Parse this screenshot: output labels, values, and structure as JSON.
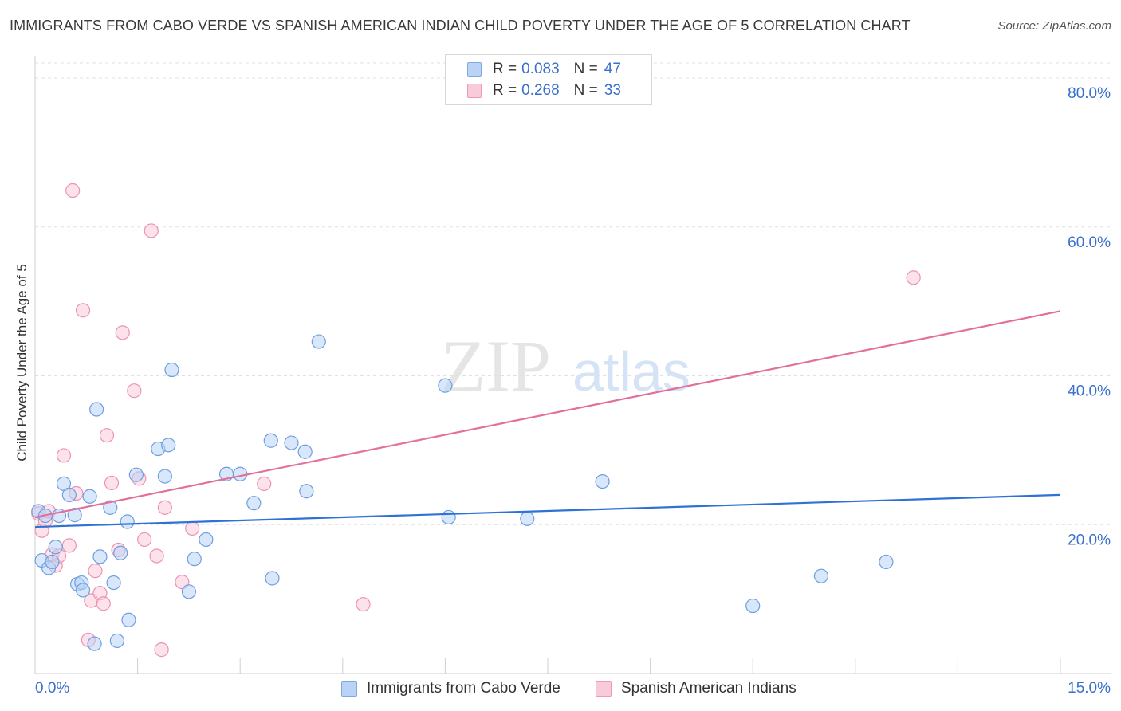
{
  "title": "IMMIGRANTS FROM CABO VERDE VS SPANISH AMERICAN INDIAN CHILD POVERTY UNDER THE AGE OF 5 CORRELATION CHART",
  "source": "Source: ZipAtlas.com",
  "watermark": {
    "zip": "ZIP",
    "atlas": "atlas"
  },
  "legend": {
    "r_label": "R =",
    "n_label": "N =",
    "series1": {
      "r": "0.083",
      "n": "47"
    },
    "series2": {
      "r": "0.268",
      "n": "33"
    }
  },
  "colors": {
    "blue_fill": "#b8d3f6",
    "blue_stroke": "#6f9ee0",
    "blue_line": "#2f72d6",
    "pink_fill": "#f9cad9",
    "pink_stroke": "#ec93b1",
    "pink_line": "#e3709a",
    "tick_label": "#3a6fcc",
    "grid": "#e0e0e0"
  },
  "chart_data": {
    "type": "scatter",
    "title": "IMMIGRANTS FROM CABO VERDE VS SPANISH AMERICAN INDIAN CHILD POVERTY UNDER THE AGE OF 5 CORRELATION CHART",
    "xlabel": "",
    "ylabel": "Child Poverty Under the Age of 5",
    "xlim": [
      0,
      15
    ],
    "ylim": [
      0,
      83
    ],
    "x_tick_labels": [
      "0.0%",
      "15.0%"
    ],
    "y_ticks": [
      20,
      40,
      60,
      80
    ],
    "y_tick_labels": [
      "20.0%",
      "40.0%",
      "60.0%",
      "80.0%"
    ],
    "series": [
      {
        "name": "Immigrants from Cabo Verde",
        "color": "blue",
        "trend": {
          "x": [
            0,
            15
          ],
          "y": [
            19.7,
            24.0
          ]
        },
        "points": [
          [
            0.05,
            21.8
          ],
          [
            0.1,
            15.2
          ],
          [
            0.15,
            21.2
          ],
          [
            0.2,
            14.2
          ],
          [
            0.25,
            15.0
          ],
          [
            0.3,
            17.0
          ],
          [
            0.35,
            21.2
          ],
          [
            0.42,
            25.5
          ],
          [
            0.5,
            24.0
          ],
          [
            0.58,
            21.3
          ],
          [
            0.62,
            12.0
          ],
          [
            0.68,
            12.2
          ],
          [
            0.7,
            11.2
          ],
          [
            0.8,
            23.8
          ],
          [
            0.9,
            35.5
          ],
          [
            0.95,
            15.7
          ],
          [
            1.1,
            22.3
          ],
          [
            1.15,
            12.2
          ],
          [
            1.2,
            4.4
          ],
          [
            1.25,
            16.2
          ],
          [
            1.35,
            20.4
          ],
          [
            1.37,
            7.2
          ],
          [
            1.48,
            26.7
          ],
          [
            1.8,
            30.2
          ],
          [
            1.9,
            26.5
          ],
          [
            1.95,
            30.7
          ],
          [
            2.0,
            40.8
          ],
          [
            2.25,
            11.0
          ],
          [
            2.33,
            15.4
          ],
          [
            2.5,
            18.0
          ],
          [
            2.8,
            26.8
          ],
          [
            3.0,
            26.8
          ],
          [
            3.2,
            22.9
          ],
          [
            3.45,
            31.3
          ],
          [
            3.47,
            12.8
          ],
          [
            3.75,
            31.0
          ],
          [
            3.95,
            29.8
          ],
          [
            3.97,
            24.5
          ],
          [
            4.15,
            44.6
          ],
          [
            6.0,
            38.7
          ],
          [
            6.05,
            21.0
          ],
          [
            7.2,
            20.8
          ],
          [
            8.3,
            25.8
          ],
          [
            10.5,
            9.1
          ],
          [
            11.5,
            13.1
          ],
          [
            12.45,
            15.0
          ],
          [
            0.87,
            4.0
          ]
        ]
      },
      {
        "name": "Spanish American Indians",
        "color": "pink",
        "trend": {
          "x": [
            0,
            15
          ],
          "y": [
            21.0,
            48.7
          ]
        },
        "points": [
          [
            0.05,
            21.5
          ],
          [
            0.1,
            19.2
          ],
          [
            0.15,
            20.5
          ],
          [
            0.2,
            21.8
          ],
          [
            0.25,
            16.0
          ],
          [
            0.3,
            14.5
          ],
          [
            0.35,
            15.8
          ],
          [
            0.42,
            29.3
          ],
          [
            0.5,
            17.2
          ],
          [
            0.55,
            64.9
          ],
          [
            0.6,
            24.2
          ],
          [
            0.7,
            48.8
          ],
          [
            0.78,
            4.5
          ],
          [
            0.82,
            9.8
          ],
          [
            0.88,
            13.8
          ],
          [
            0.95,
            10.8
          ],
          [
            1.0,
            9.4
          ],
          [
            1.05,
            32.0
          ],
          [
            1.12,
            25.6
          ],
          [
            1.22,
            16.6
          ],
          [
            1.28,
            45.8
          ],
          [
            1.45,
            38.0
          ],
          [
            1.52,
            26.2
          ],
          [
            1.6,
            18.0
          ],
          [
            1.7,
            59.5
          ],
          [
            1.78,
            15.8
          ],
          [
            1.85,
            3.2
          ],
          [
            1.9,
            22.3
          ],
          [
            2.15,
            12.3
          ],
          [
            2.3,
            19.5
          ],
          [
            3.35,
            25.5
          ],
          [
            4.8,
            9.3
          ],
          [
            12.85,
            53.2
          ]
        ]
      }
    ],
    "legend": [
      "Immigrants from Cabo Verde",
      "Spanish American Indians"
    ]
  }
}
